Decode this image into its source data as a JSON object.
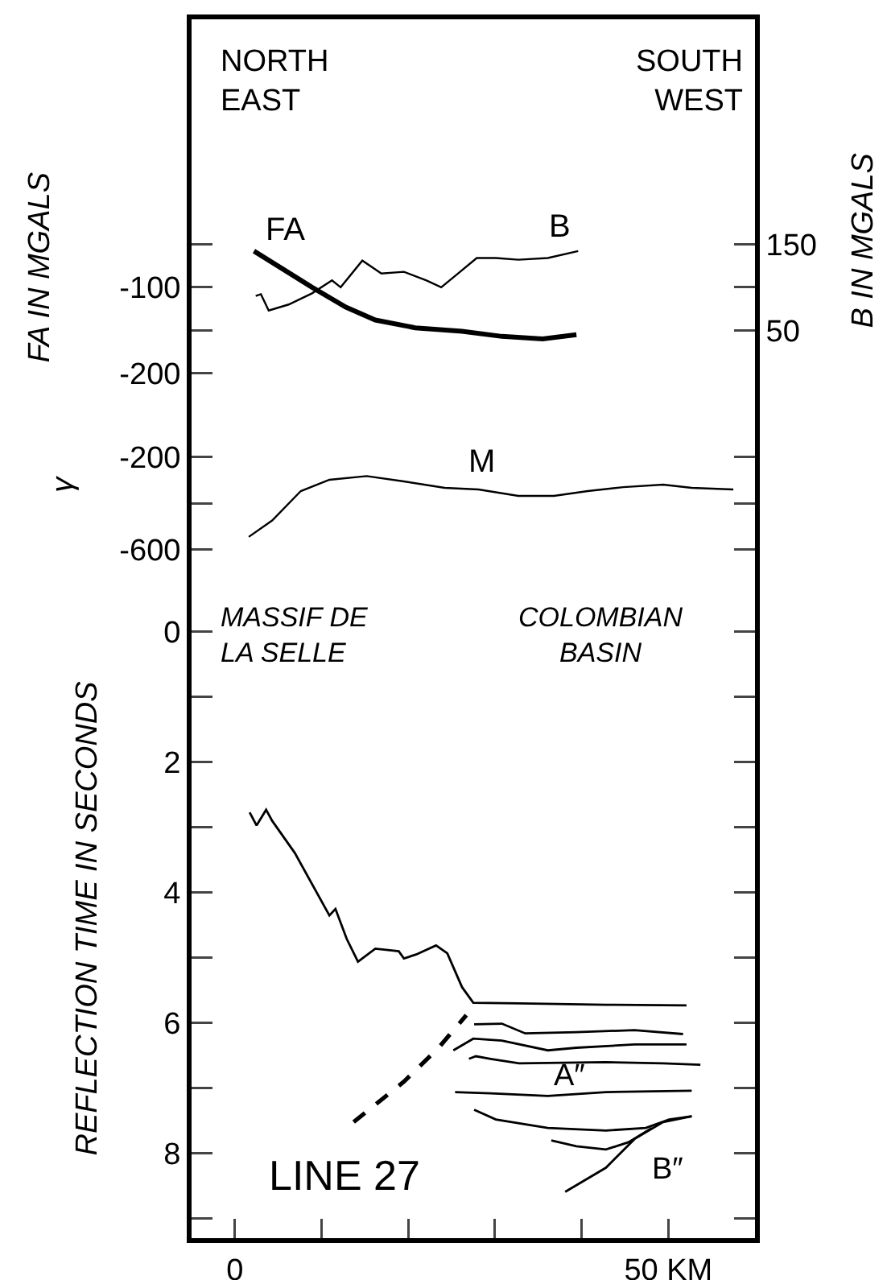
{
  "chart_data": [
    {
      "type": "line",
      "ylabel": "FA IN MGALS",
      "y2label": "B IN MGALS",
      "xlim": [
        -5,
        60
      ],
      "ylim": [
        -230,
        211
      ],
      "yticks": [
        {
          "value": -50,
          "label": null
        },
        -100,
        {
          "value": -150,
          "label": null
        },
        -200
      ],
      "y2lim": [
        -30,
        411
      ],
      "y2ticks": [
        150,
        {
          "value": 100,
          "label": null
        },
        50
      ],
      "tick_labels": "y",
      "grid": false,
      "annotations": [
        "NORTH\nEAST",
        "SOUTH\nWEST",
        "FA",
        "B"
      ],
      "series": [
        {
          "color": "#000000",
          "x": [
            2.2,
            8.9,
            12.8,
            16.2,
            20.8,
            26.2,
            30.8,
            35.5,
            39.4
          ],
          "values": [
            -58,
            -100,
            -123,
            -138,
            -147,
            -151,
            -157,
            -160,
            -155
          ]
        },
        {
          "color": "#000000",
          "axis": "y2",
          "x": [
            2.4,
            3.0,
            3.9,
            6.2,
            8.9,
            11.2,
            12.2,
            14.7,
            16.9,
            19.5,
            22.1,
            23.8,
            25.5,
            27.9,
            30.1,
            32.7,
            36.1,
            39.6
          ],
          "values": [
            90,
            92,
            73,
            80,
            93,
            108,
            100,
            131,
            116,
            118,
            108,
            100,
            114,
            134,
            134,
            132,
            134,
            142
          ]
        }
      ]
    },
    {
      "type": "line",
      "ylabel": "γ",
      "xlim": [
        -5,
        60
      ],
      "ylim": [
        -730,
        50
      ],
      "yticks": [
        -200,
        {
          "value": -400,
          "label": null
        },
        -600
      ],
      "tick_labels": "y",
      "grid": false,
      "annotations": [
        "M"
      ],
      "series": [
        {
          "color": "#000000",
          "x": [
            1.6,
            4.3,
            7.6,
            10.9,
            15.2,
            19.5,
            24.2,
            28.1,
            32.7,
            36.8,
            40.7,
            44.8,
            49.4,
            52.7,
            57.5
          ],
          "values": [
            -545,
            -474,
            -347,
            -298,
            -282,
            -305,
            -333,
            -340,
            -368,
            -368,
            -347,
            -330,
            -319,
            -333,
            -340
          ]
        }
      ]
    },
    {
      "type": "line",
      "ylabel": "REFLECTION TIME IN SECONDS",
      "xlim": [
        -5,
        60
      ],
      "xticks": [
        0,
        {
          "value": 10,
          "label": null
        },
        {
          "value": 20,
          "label": null
        },
        {
          "value": 30,
          "label": null
        },
        {
          "value": 40,
          "label": null
        },
        {
          "value": 50,
          "label": "50 KM"
        }
      ],
      "ylim": [
        9.3,
        -0.8
      ],
      "yticks": [
        0,
        {
          "value": 1,
          "label": null
        },
        2,
        {
          "value": 3,
          "label": null
        },
        4,
        {
          "value": 5,
          "label": null
        },
        6,
        {
          "value": 7,
          "label": null
        },
        8,
        {
          "value": 9,
          "label": null
        }
      ],
      "grid": false,
      "annotations": [
        "MASSIF DE\nLA SELLE",
        "COLOMBIAN\nBASIN",
        "LINE 27",
        "A″",
        "B″"
      ],
      "series": [
        {
          "color": "#000000",
          "x": [
            1.7,
            2.5,
            3.6,
            4.3,
            6.9,
            10.9,
            11.6,
            12.9,
            14.2,
            16.2,
            18.9,
            19.5,
            20.9,
            23.2,
            24.5,
            26.2,
            27.5,
            32.8,
            42.8,
            52.1
          ],
          "values": [
            2.77,
            2.97,
            2.73,
            2.9,
            3.39,
            4.35,
            4.25,
            4.71,
            5.06,
            4.86,
            4.9,
            5.01,
            4.95,
            4.81,
            4.93,
            5.45,
            5.69,
            5.7,
            5.72,
            5.73
          ]
        },
        {
          "color": "#000000",
          "line_style": "dashed",
          "x": [
            13.7,
            19.5,
            23.5,
            26.7
          ],
          "values": [
            7.52,
            6.9,
            6.38,
            5.88
          ]
        },
        {
          "color": "#000000",
          "x": [
            27.6,
            30.8,
            33.5,
            39.4,
            46.1,
            51.7
          ],
          "values": [
            6.02,
            6.01,
            6.16,
            6.14,
            6.11,
            6.17
          ]
        },
        {
          "color": "#000000",
          "x": [
            25.2,
            27.5,
            30.8,
            36.1,
            39.4,
            46.1,
            52.1
          ],
          "values": [
            6.42,
            6.24,
            6.27,
            6.42,
            6.38,
            6.33,
            6.33
          ]
        },
        {
          "color": "#000000",
          "x": [
            27.0,
            27.8,
            29.5,
            32.8,
            42.8,
            49.4,
            53.7
          ],
          "values": [
            6.55,
            6.51,
            6.55,
            6.62,
            6.6,
            6.62,
            6.64
          ]
        },
        {
          "color": "#000000",
          "x": [
            25.4,
            29.5,
            36.1,
            42.8,
            52.7
          ],
          "values": [
            7.06,
            7.08,
            7.12,
            7.06,
            7.04
          ]
        },
        {
          "color": "#000000",
          "x": [
            27.6,
            30.1,
            36.1,
            42.8,
            47.4,
            50.1,
            52.7
          ],
          "values": [
            7.33,
            7.48,
            7.61,
            7.65,
            7.61,
            7.48,
            7.43
          ]
        },
        {
          "color": "#000000",
          "x": [
            36.5,
            39.4,
            42.8,
            45.4,
            48.1
          ],
          "values": [
            7.8,
            7.89,
            7.94,
            7.83,
            7.61
          ]
        },
        {
          "color": "#000000",
          "x": [
            38.1,
            42.8,
            46.1,
            49.4,
            52.7
          ],
          "values": [
            8.59,
            8.22,
            7.78,
            7.52,
            7.43
          ]
        }
      ]
    }
  ]
}
